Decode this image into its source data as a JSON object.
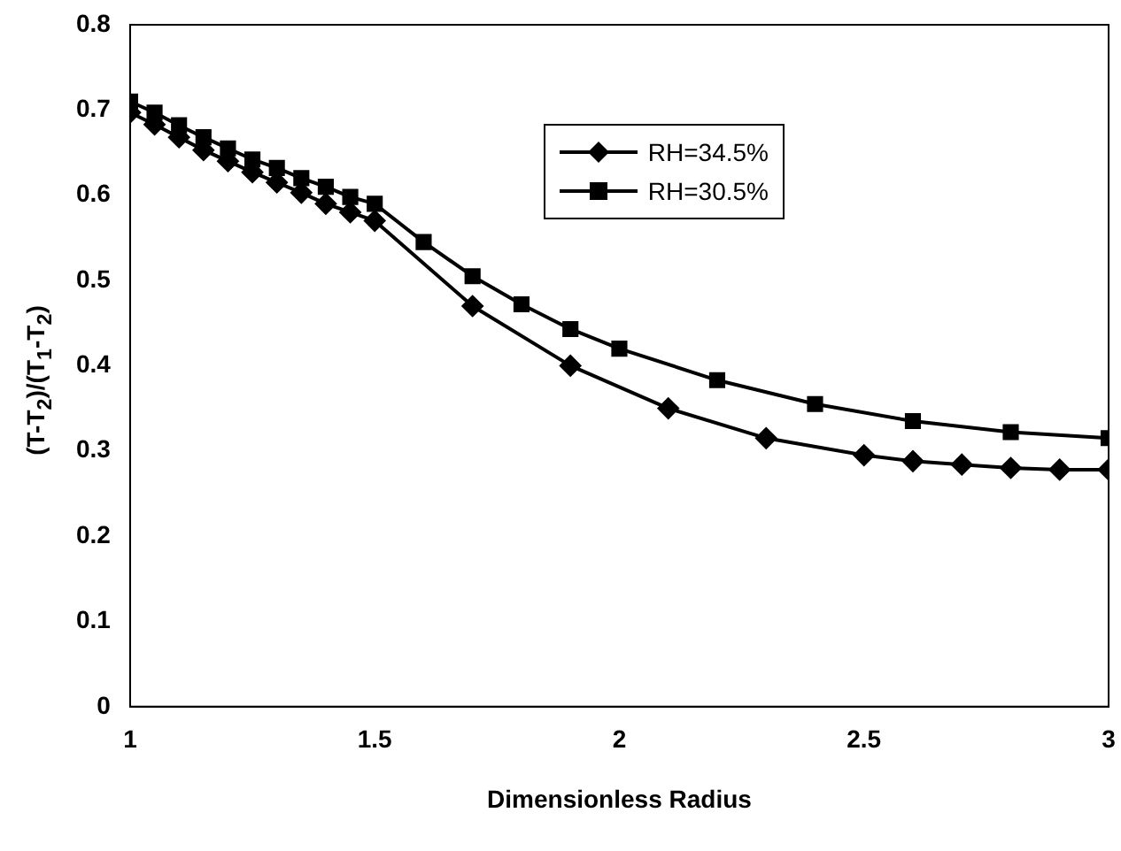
{
  "chart_data": {
    "type": "line",
    "xlabel": "Dimensionless Radius",
    "ylabel": "(T-T$_{2}$)/(T$_{1}$-T$_{2}$)",
    "xlim": [
      1,
      3
    ],
    "xticks": [
      1,
      1.5,
      2,
      2.5,
      3
    ],
    "ylim": [
      0,
      0.8
    ],
    "yticks": [
      0,
      0.1,
      0.2,
      0.3,
      0.4,
      0.5,
      0.6,
      0.7,
      0.8
    ],
    "grid": false,
    "legend": "top right",
    "line_style": "solid",
    "series": [
      {
        "name": "RH=34.5%",
        "color": "#000000",
        "marker": "diamond",
        "x": [
          1,
          1.05,
          1.1,
          1.15,
          1.2,
          1.25,
          1.3,
          1.35,
          1.4,
          1.45,
          1.5,
          1.7,
          1.9,
          2.1,
          2.3,
          2.5,
          2.6,
          2.7,
          2.8,
          2.9,
          3
        ],
        "values": [
          0.697,
          0.683,
          0.668,
          0.653,
          0.64,
          0.627,
          0.615,
          0.603,
          0.59,
          0.58,
          0.57,
          0.47,
          0.4,
          0.35,
          0.315,
          0.295,
          0.288,
          0.284,
          0.28,
          0.278,
          0.278
        ]
      },
      {
        "name": "RH=30.5%",
        "color": "#000000",
        "marker": "square",
        "x": [
          1,
          1.05,
          1.1,
          1.15,
          1.2,
          1.25,
          1.3,
          1.35,
          1.4,
          1.45,
          1.5,
          1.6,
          1.7,
          1.8,
          1.9,
          2,
          2.2,
          2.4,
          2.6,
          2.8,
          3
        ],
        "values": [
          0.71,
          0.697,
          0.682,
          0.668,
          0.655,
          0.642,
          0.632,
          0.62,
          0.61,
          0.598,
          0.59,
          0.545,
          0.505,
          0.472,
          0.443,
          0.42,
          0.383,
          0.355,
          0.335,
          0.322,
          0.315
        ]
      }
    ]
  }
}
